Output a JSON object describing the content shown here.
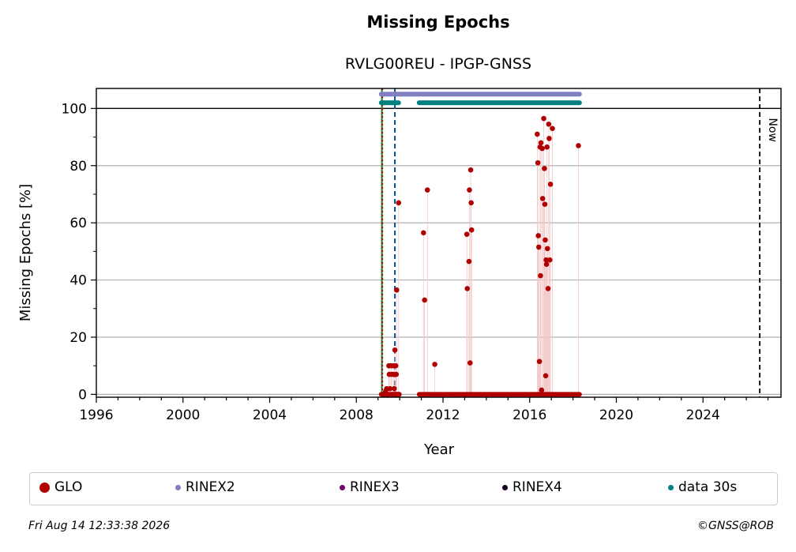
{
  "title": "Missing Epochs",
  "subtitle": "RVLG00REU - IPGP-GNSS",
  "footer": {
    "timestamp": "Fri Aug 14 12:33:38 2026",
    "copyright": "©GNSS@ROB"
  },
  "colors": {
    "glo": "#b00000",
    "rinex2": "#8080c0",
    "rinex3": "#70006a",
    "rinex4": "#1a0020",
    "data30s": "#008080",
    "grid": "#b0b0b0",
    "receiver_line": "#1a7a1a",
    "antenna_line": "#0050a0"
  },
  "legend": [
    {
      "label": "GLO",
      "color": "#b00000",
      "size": 13
    },
    {
      "label": "RINEX2",
      "color": "#8080c0",
      "size": 7
    },
    {
      "label": "RINEX3",
      "color": "#70006a",
      "size": 7
    },
    {
      "label": "RINEX4",
      "color": "#1a0020",
      "size": 7
    },
    {
      "label": "data 30s",
      "color": "#008080",
      "size": 7
    }
  ],
  "chart_data": {
    "type": "scatter",
    "title": "Missing Epochs",
    "subtitle": "RVLG00REU - IPGP-GNSS",
    "xlabel": "Year",
    "ylabel": "Missing Epochs [%]",
    "xlim": [
      1996,
      2027.6
    ],
    "ylim": [
      -1,
      107
    ],
    "xticks": [
      1996,
      2000,
      2004,
      2008,
      2012,
      2016,
      2020,
      2024
    ],
    "yticks": [
      0,
      20,
      40,
      60,
      80,
      100
    ],
    "grid": "horizontal",
    "now_label": "Now",
    "now_year": 2026.62,
    "event_lines": [
      {
        "year": 2009.18,
        "color": "#1a7a1a",
        "style": "solid"
      },
      {
        "year": 2009.2,
        "color": "#b00000",
        "style": "dotted"
      },
      {
        "year": 2009.78,
        "color": "#0050a0",
        "style": "dashed"
      }
    ],
    "availability": [
      {
        "name": "RINEX2",
        "y": 105,
        "segments": [
          [
            2009.15,
            2018.3
          ]
        ]
      },
      {
        "name": "data 30s",
        "y": 102,
        "segments": [
          [
            2009.15,
            2009.95
          ],
          [
            2010.9,
            2015.1
          ],
          [
            2015.15,
            2018.3
          ]
        ]
      }
    ],
    "series": [
      {
        "name": "GLO",
        "points": [
          [
            2009.25,
            0
          ],
          [
            2009.3,
            0
          ],
          [
            2009.35,
            1
          ],
          [
            2009.4,
            2
          ],
          [
            2009.45,
            0
          ],
          [
            2009.5,
            10
          ],
          [
            2009.52,
            7
          ],
          [
            2009.55,
            2
          ],
          [
            2009.6,
            10
          ],
          [
            2009.62,
            7
          ],
          [
            2009.65,
            0
          ],
          [
            2009.7,
            10
          ],
          [
            2009.72,
            7
          ],
          [
            2009.75,
            2
          ],
          [
            2009.78,
            15.5
          ],
          [
            2009.8,
            0
          ],
          [
            2009.82,
            10
          ],
          [
            2009.84,
            7
          ],
          [
            2009.86,
            36.5
          ],
          [
            2009.9,
            0
          ],
          [
            2009.95,
            67
          ],
          [
            2009.97,
            0
          ],
          [
            2011.1,
            56.5
          ],
          [
            2011.15,
            33
          ],
          [
            2011.28,
            71.5
          ],
          [
            2011.62,
            10.5
          ],
          [
            2013.1,
            56
          ],
          [
            2013.12,
            37
          ],
          [
            2013.2,
            46.5
          ],
          [
            2013.22,
            71.5
          ],
          [
            2013.25,
            11
          ],
          [
            2013.28,
            78.5
          ],
          [
            2013.3,
            67
          ],
          [
            2013.32,
            57.5
          ],
          [
            2016.35,
            91
          ],
          [
            2016.38,
            81
          ],
          [
            2016.4,
            55.5
          ],
          [
            2016.42,
            51.5
          ],
          [
            2016.45,
            11.5
          ],
          [
            2016.48,
            86.5
          ],
          [
            2016.5,
            41.5
          ],
          [
            2016.52,
            88
          ],
          [
            2016.55,
            1.5
          ],
          [
            2016.58,
            86
          ],
          [
            2016.6,
            68.5
          ],
          [
            2016.65,
            96.5
          ],
          [
            2016.68,
            79
          ],
          [
            2016.7,
            66.5
          ],
          [
            2016.72,
            54
          ],
          [
            2016.74,
            6.5
          ],
          [
            2016.76,
            47
          ],
          [
            2016.78,
            45.5
          ],
          [
            2016.8,
            86.5
          ],
          [
            2016.82,
            51
          ],
          [
            2016.85,
            37
          ],
          [
            2016.88,
            94.5
          ],
          [
            2016.9,
            89.5
          ],
          [
            2016.93,
            47
          ],
          [
            2016.96,
            73.5
          ],
          [
            2017.05,
            93
          ],
          [
            2018.25,
            87
          ]
        ],
        "zero_segments": [
          [
            2009.15,
            2009.98
          ],
          [
            2010.9,
            2018.3
          ]
        ]
      }
    ]
  }
}
